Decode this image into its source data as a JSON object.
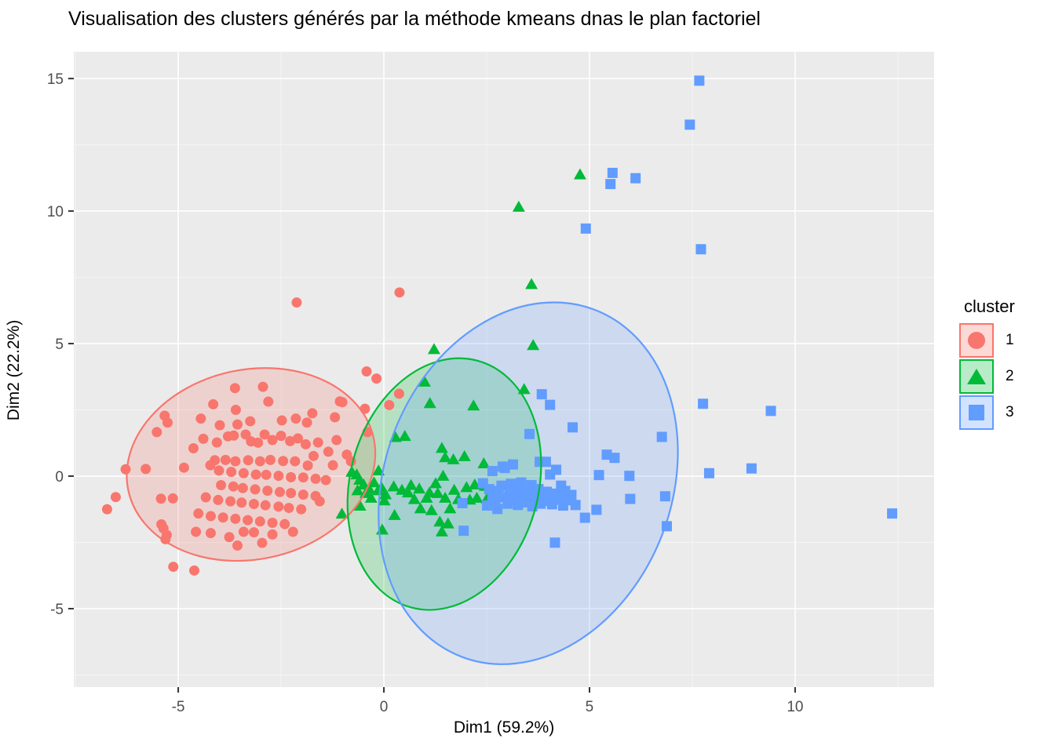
{
  "title": "Visualisation des clusters générés par la méthode kmeans dnas le plan factoriel",
  "legend": {
    "title": "cluster",
    "items": [
      {
        "label": "1",
        "shape": "circle",
        "color": "#F8766D",
        "fill": "rgba(248,118,109,0.28)"
      },
      {
        "label": "2",
        "shape": "triangle",
        "color": "#00BA38",
        "fill": "rgba(0,186,56,0.28)"
      },
      {
        "label": "3",
        "shape": "square",
        "color": "#619CFF",
        "fill": "rgba(97,156,255,0.28)"
      }
    ]
  },
  "colors": {
    "cluster1": "#F8766D",
    "cluster2": "#00BA38",
    "cluster3": "#619CFF",
    "panel_bg": "#EBEBEB",
    "grid_major": "#FFFFFF",
    "grid_minor": "#F5F5F5",
    "tick_label": "#4D4D4D",
    "tick_mark": "#333333",
    "ellipse_fill_alpha": 0.22
  },
  "chart_data": {
    "type": "scatter",
    "title": "Visualisation des clusters générés par la méthode kmeans dnas le plan factoriel",
    "xlabel": "Dim1 (59.2%)",
    "ylabel": "Dim2 (22.2%)",
    "xlim": [
      -7.54,
      13.38
    ],
    "ylim": [
      -7.96,
      16.01
    ],
    "x_ticks": [
      -5,
      0,
      5,
      10
    ],
    "y_ticks": [
      -5,
      0,
      5,
      10,
      15
    ],
    "x_minor_ticks": [
      -7.5,
      -2.5,
      2.5,
      7.5,
      12.5
    ],
    "y_minor_ticks": [
      -7.5,
      -2.5,
      2.5,
      7.5,
      12.5
    ],
    "grid": true,
    "legend_position": "right",
    "ellipses": [
      {
        "cluster": "1",
        "cx": -3.23,
        "cy": 0.44,
        "rx": 3.05,
        "ry": 3.58,
        "rot_screen_deg": -12,
        "color": "#F8766D"
      },
      {
        "cluster": "2",
        "cx": 1.47,
        "cy": -0.3,
        "rx": 2.29,
        "ry": 4.82,
        "rot_screen_deg": 15,
        "color": "#00BA38"
      },
      {
        "cluster": "3",
        "cx": 3.51,
        "cy": -0.27,
        "rx": 3.49,
        "ry": 7.01,
        "rot_screen_deg": 21,
        "color": "#619CFF"
      }
    ],
    "series": [
      {
        "name": "1",
        "marker": "circle",
        "color": "#F8766D",
        "points": [
          [
            -6.73,
            -1.25
          ],
          [
            -6.52,
            -0.79
          ],
          [
            -6.28,
            0.26
          ],
          [
            -5.79,
            0.27
          ],
          [
            -5.52,
            1.66
          ],
          [
            -5.33,
            2.28
          ],
          [
            -5.26,
            2.02
          ],
          [
            -5.42,
            -0.85
          ],
          [
            -5.13,
            -0.84
          ],
          [
            -5.41,
            -1.82
          ],
          [
            -5.36,
            -1.97
          ],
          [
            -5.31,
            -2.38
          ],
          [
            -5.28,
            -2.22
          ],
          [
            -5.12,
            -3.42
          ],
          [
            -4.61,
            -3.56
          ],
          [
            -2.12,
            6.55
          ],
          [
            0.38,
            6.93
          ],
          [
            -0.42,
            3.95
          ],
          [
            -0.18,
            3.68
          ],
          [
            0.37,
            3.11
          ],
          [
            0.13,
            2.68
          ],
          [
            -0.46,
            2.54
          ],
          [
            -1.01,
            2.79
          ],
          [
            -4.45,
            2.17
          ],
          [
            -4.15,
            2.71
          ],
          [
            -3.62,
            3.32
          ],
          [
            -2.94,
            3.37
          ],
          [
            -2.81,
            2.81
          ],
          [
            -3.6,
            2.5
          ],
          [
            -3.25,
            2.07
          ],
          [
            -3.56,
            1.95
          ],
          [
            -3.99,
            1.92
          ],
          [
            -4.39,
            1.41
          ],
          [
            -2.48,
            2.1
          ],
          [
            -2.14,
            2.17
          ],
          [
            -1.87,
            2.02
          ],
          [
            -1.74,
            2.37
          ],
          [
            -1.07,
            2.82
          ],
          [
            -1.19,
            2.22
          ],
          [
            -4.06,
            1.27
          ],
          [
            -3.79,
            1.5
          ],
          [
            -3.65,
            1.53
          ],
          [
            -3.36,
            1.57
          ],
          [
            -3.23,
            1.31
          ],
          [
            -3.06,
            1.26
          ],
          [
            -2.9,
            1.57
          ],
          [
            -2.71,
            1.36
          ],
          [
            -2.5,
            1.52
          ],
          [
            -2.28,
            1.32
          ],
          [
            -2.09,
            1.42
          ],
          [
            -1.6,
            1.27
          ],
          [
            -1.15,
            1.36
          ],
          [
            -0.4,
            1.66
          ],
          [
            -1.9,
            1.2
          ],
          [
            -4.63,
            1.05
          ],
          [
            -1.71,
            0.76
          ],
          [
            -1.35,
            0.92
          ],
          [
            -0.9,
            0.81
          ],
          [
            -0.8,
            0.56
          ],
          [
            -1.24,
            0.41
          ],
          [
            -1.85,
            0.4
          ],
          [
            -2.16,
            0.56
          ],
          [
            -2.45,
            0.57
          ],
          [
            -2.76,
            0.61
          ],
          [
            -3.01,
            0.56
          ],
          [
            -3.3,
            0.6
          ],
          [
            -3.61,
            0.56
          ],
          [
            -3.85,
            0.61
          ],
          [
            -4.11,
            0.6
          ],
          [
            -4.22,
            0.41
          ],
          [
            -4.01,
            0.21
          ],
          [
            -3.71,
            0.16
          ],
          [
            -3.41,
            0.11
          ],
          [
            -3.11,
            0.06
          ],
          [
            -2.86,
            0.05
          ],
          [
            -2.56,
            0.01
          ],
          [
            -2.26,
            -0.04
          ],
          [
            -1.96,
            -0.05
          ],
          [
            -1.66,
            -0.1
          ],
          [
            -1.41,
            -0.15
          ],
          [
            -4.86,
            0.32
          ],
          [
            -3.96,
            -0.34
          ],
          [
            -3.66,
            -0.39
          ],
          [
            -3.43,
            -0.45
          ],
          [
            -3.13,
            -0.5
          ],
          [
            -2.83,
            -0.55
          ],
          [
            -2.53,
            -0.6
          ],
          [
            -2.26,
            -0.64
          ],
          [
            -1.96,
            -0.7
          ],
          [
            -1.66,
            -0.75
          ],
          [
            -4.33,
            -0.8
          ],
          [
            -4.03,
            -0.9
          ],
          [
            -3.73,
            -0.95
          ],
          [
            -3.46,
            -1.0
          ],
          [
            -3.16,
            -1.05
          ],
          [
            -2.88,
            -1.1
          ],
          [
            -2.56,
            -1.15
          ],
          [
            -2.31,
            -1.2
          ],
          [
            -2.01,
            -1.25
          ],
          [
            -1.56,
            -0.95
          ],
          [
            -4.51,
            -1.41
          ],
          [
            -4.21,
            -1.51
          ],
          [
            -3.91,
            -1.56
          ],
          [
            -3.61,
            -1.61
          ],
          [
            -3.31,
            -1.66
          ],
          [
            -3.01,
            -1.71
          ],
          [
            -2.71,
            -1.76
          ],
          [
            -2.41,
            -1.81
          ],
          [
            -4.57,
            -2.1
          ],
          [
            -4.21,
            -2.15
          ],
          [
            -3.76,
            -2.3
          ],
          [
            -3.41,
            -2.1
          ],
          [
            -3.16,
            -2.12
          ],
          [
            -2.71,
            -2.2
          ],
          [
            -2.21,
            -2.1
          ],
          [
            -2.96,
            -2.52
          ],
          [
            -3.56,
            -2.62
          ]
        ]
      },
      {
        "name": "2",
        "marker": "triangle",
        "color": "#00BA38",
        "points": [
          [
            4.77,
            11.36
          ],
          [
            3.28,
            10.14
          ],
          [
            3.59,
            7.22
          ],
          [
            3.63,
            4.92
          ],
          [
            1.22,
            4.77
          ],
          [
            0.99,
            3.54
          ],
          [
            3.41,
            3.26
          ],
          [
            1.12,
            2.73
          ],
          [
            2.18,
            2.64
          ],
          [
            0.28,
            1.45
          ],
          [
            0.51,
            1.49
          ],
          [
            1.41,
            1.04
          ],
          [
            1.96,
            0.73
          ],
          [
            1.49,
            0.69
          ],
          [
            1.69,
            0.61
          ],
          [
            2.43,
            0.46
          ],
          [
            -0.66,
            0.04
          ],
          [
            -0.13,
            0.19
          ],
          [
            -0.78,
            0.14
          ],
          [
            -0.59,
            -0.16
          ],
          [
            -0.49,
            -0.34
          ],
          [
            -0.64,
            -0.56
          ],
          [
            -0.36,
            -0.49
          ],
          [
            -0.24,
            -0.26
          ],
          [
            -0.14,
            -0.56
          ],
          [
            -0.31,
            -0.84
          ],
          [
            -0.58,
            -1.14
          ],
          [
            -1.02,
            -1.44
          ],
          [
            -0.44,
            -0.66
          ],
          [
            -0.06,
            -0.44
          ],
          [
            0.04,
            -0.71
          ],
          [
            0.24,
            -0.41
          ],
          [
            0.01,
            -0.94
          ],
          [
            0.26,
            -1.49
          ],
          [
            -0.04,
            -2.04
          ],
          [
            0.44,
            -0.54
          ],
          [
            0.66,
            -0.36
          ],
          [
            0.86,
            -0.49
          ],
          [
            0.59,
            -0.64
          ],
          [
            0.74,
            -0.89
          ],
          [
            0.89,
            -1.24
          ],
          [
            1.04,
            -0.84
          ],
          [
            1.16,
            -1.31
          ],
          [
            1.11,
            -0.64
          ],
          [
            1.26,
            -0.29
          ],
          [
            1.31,
            -0.66
          ],
          [
            1.44,
            -0.01
          ],
          [
            1.49,
            -0.84
          ],
          [
            1.61,
            -1.24
          ],
          [
            1.71,
            -0.54
          ],
          [
            1.81,
            -0.89
          ],
          [
            2.01,
            -0.44
          ],
          [
            2.09,
            -0.91
          ],
          [
            2.21,
            -0.34
          ],
          [
            2.26,
            -0.84
          ],
          [
            2.46,
            -0.39
          ],
          [
            2.51,
            -0.86
          ],
          [
            1.36,
            -1.74
          ],
          [
            1.56,
            -1.81
          ],
          [
            1.41,
            -2.11
          ]
        ]
      },
      {
        "name": "3",
        "marker": "square",
        "color": "#619CFF",
        "points": [
          [
            7.67,
            14.92
          ],
          [
            7.44,
            13.26
          ],
          [
            5.56,
            11.44
          ],
          [
            5.51,
            11.02
          ],
          [
            6.12,
            11.24
          ],
          [
            4.91,
            9.34
          ],
          [
            7.71,
            8.56
          ],
          [
            9.41,
            2.46
          ],
          [
            8.94,
            0.29
          ],
          [
            7.91,
            0.11
          ],
          [
            12.36,
            -1.41
          ],
          [
            7.76,
            2.73
          ],
          [
            6.76,
            1.48
          ],
          [
            5.42,
            0.81
          ],
          [
            5.61,
            0.69
          ],
          [
            5.23,
            0.04
          ],
          [
            5.97,
            0.01
          ],
          [
            6.84,
            -0.76
          ],
          [
            5.99,
            -0.86
          ],
          [
            6.88,
            -1.89
          ],
          [
            4.16,
            -2.51
          ],
          [
            1.94,
            -2.06
          ],
          [
            1.91,
            -1.02
          ],
          [
            3.84,
            3.09
          ],
          [
            4.04,
            2.69
          ],
          [
            4.59,
            1.84
          ],
          [
            3.54,
            1.59
          ],
          [
            2.94,
            0.31
          ],
          [
            3.14,
            0.44
          ],
          [
            3.79,
            0.54
          ],
          [
            3.94,
            0.54
          ],
          [
            4.04,
            0.06
          ],
          [
            4.19,
            0.24
          ],
          [
            2.64,
            0.19
          ],
          [
            2.89,
            0.36
          ],
          [
            2.41,
            -0.27
          ],
          [
            2.56,
            -0.49
          ],
          [
            2.64,
            -0.74
          ],
          [
            2.71,
            -0.94
          ],
          [
            2.79,
            -0.56
          ],
          [
            2.86,
            -0.36
          ],
          [
            2.94,
            -0.79
          ],
          [
            3.01,
            -1.04
          ],
          [
            3.06,
            -0.59
          ],
          [
            3.14,
            -0.86
          ],
          [
            3.21,
            -0.64
          ],
          [
            3.26,
            -1.09
          ],
          [
            3.31,
            -0.44
          ],
          [
            3.39,
            -0.79
          ],
          [
            3.44,
            -0.99
          ],
          [
            3.49,
            -0.61
          ],
          [
            3.56,
            -0.84
          ],
          [
            3.61,
            -1.14
          ],
          [
            3.66,
            -0.69
          ],
          [
            3.71,
            -0.89
          ],
          [
            3.76,
            -0.49
          ],
          [
            3.81,
            -1.04
          ],
          [
            3.86,
            -0.74
          ],
          [
            3.91,
            -0.94
          ],
          [
            3.96,
            -0.59
          ],
          [
            4.01,
            -0.81
          ],
          [
            4.09,
            -1.06
          ],
          [
            4.14,
            -0.66
          ],
          [
            4.21,
            -0.89
          ],
          [
            4.29,
            -0.74
          ],
          [
            4.36,
            -1.11
          ],
          [
            4.41,
            -0.56
          ],
          [
            4.49,
            -0.91
          ],
          [
            4.56,
            -0.71
          ],
          [
            3.34,
            -0.24
          ],
          [
            3.09,
            -0.29
          ],
          [
            3.59,
            -0.34
          ],
          [
            2.76,
            -1.24
          ],
          [
            4.31,
            -0.36
          ],
          [
            4.66,
            -1.09
          ],
          [
            2.51,
            -1.11
          ],
          [
            4.89,
            -1.57
          ],
          [
            5.17,
            -1.27
          ]
        ]
      }
    ]
  }
}
